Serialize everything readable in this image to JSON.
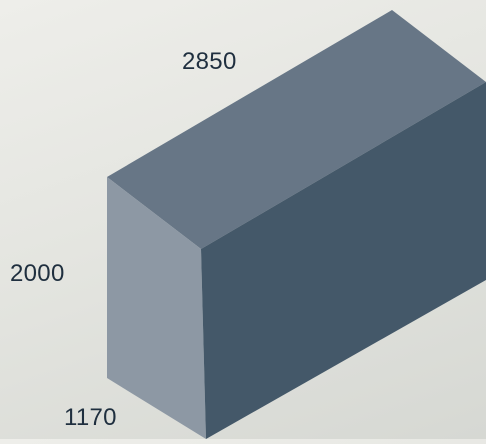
{
  "dimensions": {
    "width": "2850",
    "height": "2000",
    "depth": "1170"
  },
  "colors": {
    "background": "#e4e5e0",
    "top_face": "#677686",
    "left_face": "#8d98a4",
    "front_face": "#445869",
    "label_text": "#1f2f3f"
  }
}
